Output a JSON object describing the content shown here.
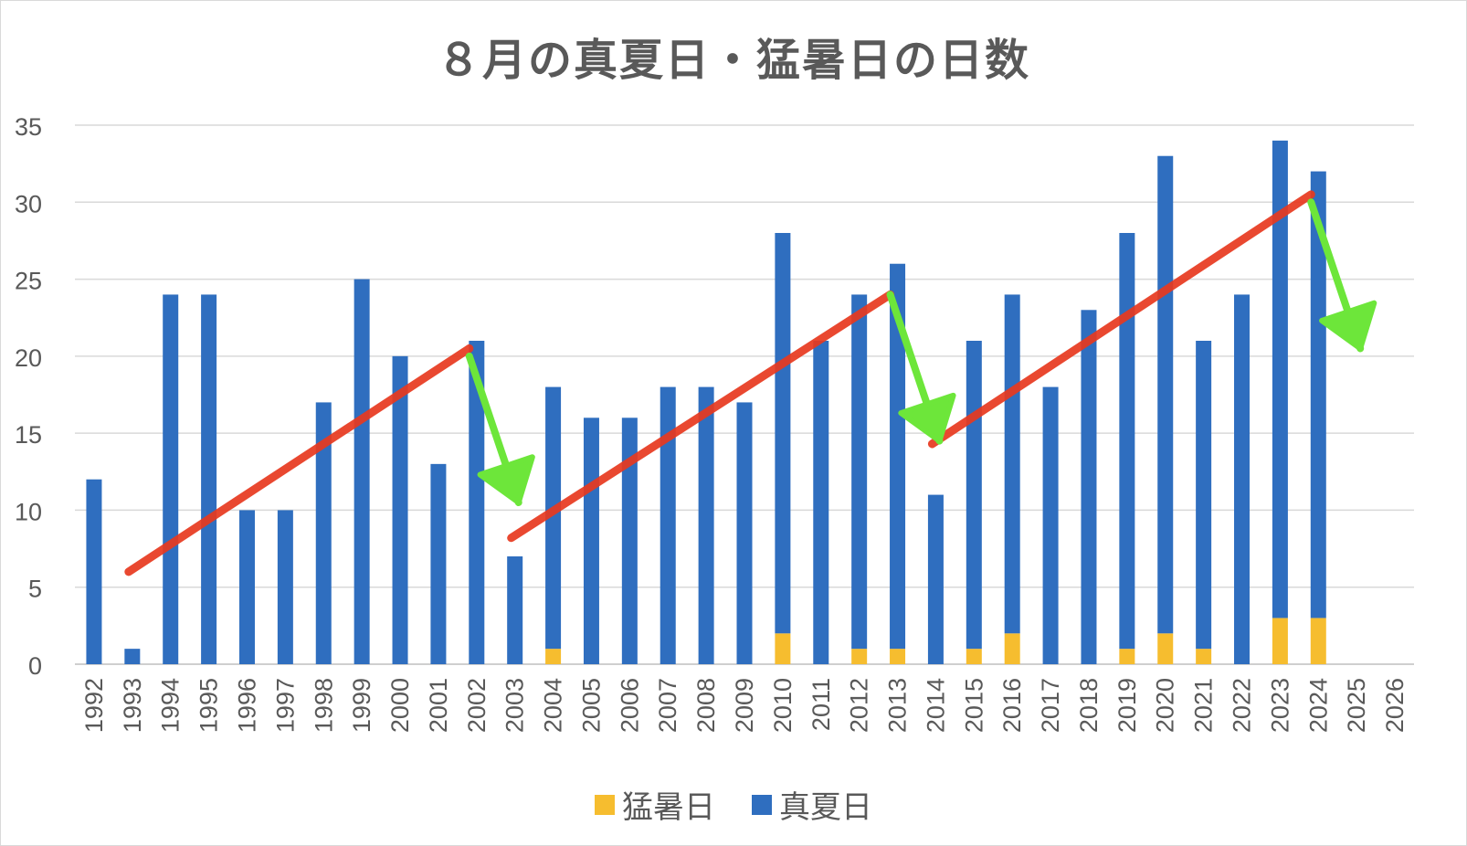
{
  "chart_data": {
    "type": "bar",
    "stacked": true,
    "title": "８月の真夏日・猛暑日の日数",
    "categories": [
      "1992",
      "1993",
      "1994",
      "1995",
      "1996",
      "1997",
      "1998",
      "1999",
      "2000",
      "2001",
      "2002",
      "2003",
      "2004",
      "2005",
      "2006",
      "2007",
      "2008",
      "2009",
      "2010",
      "2011",
      "2012",
      "2013",
      "2014",
      "2015",
      "2016",
      "2017",
      "2018",
      "2019",
      "2020",
      "2021",
      "2022",
      "2023",
      "2024",
      "2025",
      "2026"
    ],
    "series": [
      {
        "name": "猛暑日",
        "color": "#f6bd2f",
        "values": [
          0,
          0,
          0,
          0,
          0,
          0,
          0,
          0,
          0,
          0,
          0,
          0,
          1,
          0,
          0,
          0,
          0,
          0,
          2,
          0,
          1,
          1,
          0,
          1,
          2,
          0,
          0,
          1,
          2,
          1,
          0,
          3,
          3,
          null,
          null
        ]
      },
      {
        "name": "真夏日",
        "color": "#2f6ebf",
        "values": [
          12,
          1,
          24,
          24,
          10,
          10,
          17,
          25,
          20,
          13,
          21,
          7,
          17,
          16,
          16,
          18,
          18,
          17,
          26,
          21,
          23,
          25,
          11,
          20,
          22,
          18,
          23,
          27,
          31,
          20,
          24,
          31,
          29,
          null,
          null
        ]
      }
    ],
    "ylim": [
      0,
      35
    ],
    "yticks": [
      0,
      5,
      10,
      15,
      20,
      25,
      30,
      35
    ],
    "grid": true,
    "legend_position": "bottom",
    "annotations": {
      "trend_lines": [
        {
          "color": "#e8391f",
          "from": {
            "x": "1993",
            "y": 6
          },
          "to": {
            "x": "2002",
            "y": 20.5
          }
        },
        {
          "color": "#e8391f",
          "from": {
            "x": "2003",
            "y": 8.2
          },
          "to": {
            "x": "2013",
            "y": 24
          }
        },
        {
          "color": "#e8391f",
          "from": {
            "x": "2014",
            "y": 14.3
          },
          "to": {
            "x": "2024",
            "y": 30.5
          }
        }
      ],
      "drop_arrows": [
        {
          "color": "#6de63a",
          "from": {
            "x": "2002",
            "y": 20
          },
          "to": {
            "x": "2003",
            "y": 10.5
          }
        },
        {
          "color": "#6de63a",
          "from": {
            "x": "2013",
            "y": 24
          },
          "to": {
            "x": "2014",
            "y": 14.5
          }
        },
        {
          "color": "#6de63a",
          "from": {
            "x": "2024",
            "y": 30
          },
          "to": {
            "x": "2025",
            "y": 20.5
          }
        }
      ]
    }
  }
}
